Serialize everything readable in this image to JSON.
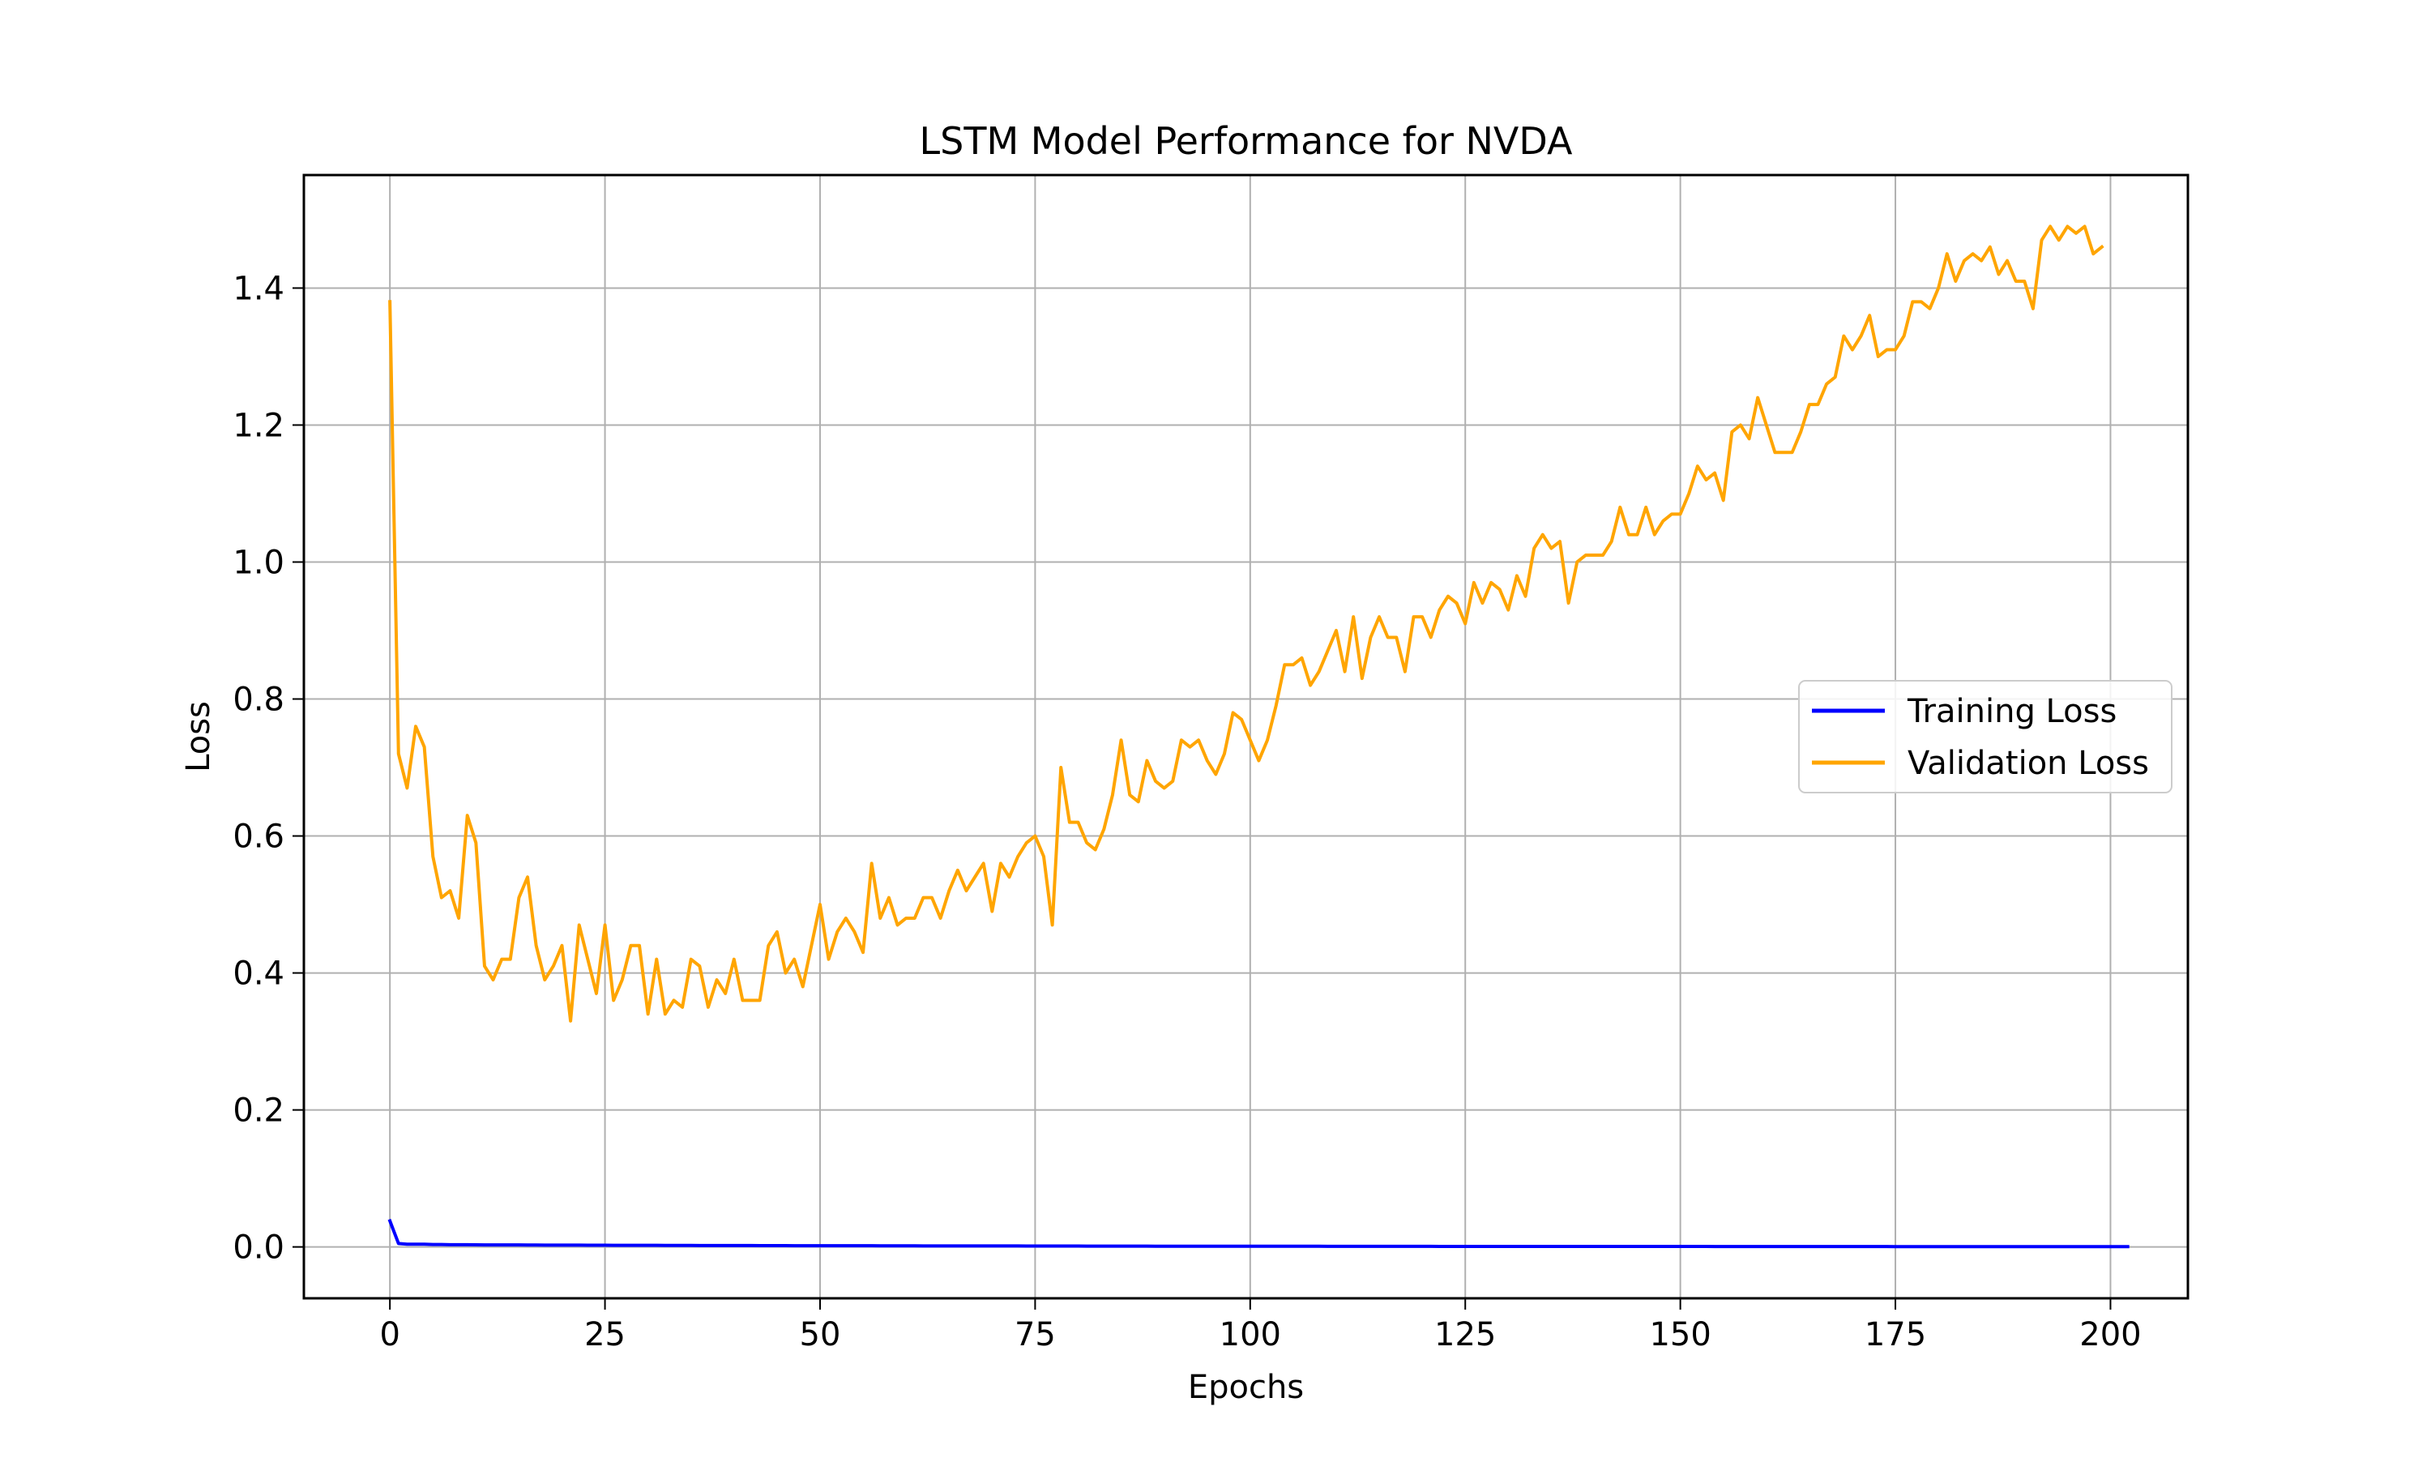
{
  "chart_data": {
    "type": "line",
    "title": "LSTM Model Performance for NVDA",
    "xlabel": "Epochs",
    "ylabel": "Loss",
    "xlim": [
      -10,
      209
    ],
    "ylim": [
      -0.075,
      1.565
    ],
    "xticks": [
      0,
      25,
      50,
      75,
      100,
      125,
      150,
      175,
      200
    ],
    "yticks": [
      0.0,
      0.2,
      0.4,
      0.6,
      0.8,
      1.0,
      1.2,
      1.4
    ],
    "xtick_labels": [
      "0",
      "25",
      "50",
      "75",
      "100",
      "125",
      "150",
      "175",
      "200"
    ],
    "ytick_labels": [
      "0.0",
      "0.2",
      "0.4",
      "0.6",
      "0.8",
      "1.0",
      "1.2",
      "1.4"
    ],
    "grid": true,
    "legend_position": "center-right",
    "series": [
      {
        "name": "Training Loss",
        "color": "#0000ff",
        "x_start": 0,
        "values": [
          0.038,
          0.005,
          0.004,
          0.004,
          0.004,
          0.0035,
          0.0035,
          0.0033,
          0.0032,
          0.0032,
          0.0031,
          0.003,
          0.003,
          0.003,
          0.0029,
          0.0029,
          0.0028,
          0.0028,
          0.0027,
          0.0027,
          0.0027,
          0.0026,
          0.0026,
          0.0025,
          0.0025,
          0.0025,
          0.0024,
          0.0024,
          0.0024,
          0.0023,
          0.0023,
          0.0023,
          0.0022,
          0.0022,
          0.0022,
          0.0022,
          0.0021,
          0.0021,
          0.0021,
          0.002,
          0.002,
          0.002,
          0.002,
          0.0019,
          0.0019,
          0.0019,
          0.0019,
          0.0018,
          0.0018,
          0.0018,
          0.0018,
          0.0018,
          0.0017,
          0.0017,
          0.0017,
          0.0017,
          0.0017,
          0.0016,
          0.0016,
          0.0016,
          0.0016,
          0.0016,
          0.0015,
          0.0015,
          0.0015,
          0.0015,
          0.0015,
          0.0015,
          0.0014,
          0.0014,
          0.0014,
          0.0014,
          0.0014,
          0.0014,
          0.0013,
          0.0013,
          0.0013,
          0.0013,
          0.0013,
          0.0013,
          0.0013,
          0.0012,
          0.0012,
          0.0012,
          0.0012,
          0.0012,
          0.0012,
          0.0012,
          0.0012,
          0.0011,
          0.0011,
          0.0011,
          0.0011,
          0.0011,
          0.0011,
          0.0011,
          0.0011,
          0.0011,
          0.001,
          0.001,
          0.001,
          0.001,
          0.001,
          0.001,
          0.001,
          0.001,
          0.001,
          0.001,
          0.001,
          0.0009,
          0.0009,
          0.0009,
          0.0009,
          0.0009,
          0.0009,
          0.0009,
          0.0009,
          0.0009,
          0.0009,
          0.0009,
          0.0009,
          0.0009,
          0.0008,
          0.0008,
          0.0008,
          0.0008,
          0.0008,
          0.0008,
          0.0008,
          0.0008,
          0.0008,
          0.0008,
          0.0008,
          0.0008,
          0.0008,
          0.0008,
          0.0008,
          0.0007,
          0.0007,
          0.0007,
          0.0007,
          0.0007,
          0.0007,
          0.0007,
          0.0007,
          0.0007,
          0.0007,
          0.0007,
          0.0007,
          0.0007,
          0.0007,
          0.0007,
          0.0007,
          0.0007,
          0.0006,
          0.0006,
          0.0006,
          0.0006,
          0.0006,
          0.0006,
          0.0006,
          0.0006,
          0.0006,
          0.0006,
          0.0006,
          0.0006,
          0.0006,
          0.0006,
          0.0006,
          0.0006,
          0.0006,
          0.0006,
          0.0006,
          0.0006,
          0.0006,
          0.0005,
          0.0005,
          0.0005,
          0.0005,
          0.0005,
          0.0005,
          0.0005,
          0.0005,
          0.0005,
          0.0005,
          0.0005,
          0.0005,
          0.0005,
          0.0005,
          0.0005,
          0.0005,
          0.0005,
          0.0005,
          0.0005,
          0.0005,
          0.0005,
          0.0005,
          0.0005,
          0.0005,
          0.0005,
          0.0005,
          0.0005,
          0.0005
        ]
      },
      {
        "name": "Validation Loss",
        "color": "#ffa500",
        "x_start": 0,
        "values": [
          1.38,
          0.72,
          0.67,
          0.76,
          0.73,
          0.57,
          0.51,
          0.52,
          0.48,
          0.63,
          0.59,
          0.41,
          0.39,
          0.42,
          0.42,
          0.51,
          0.54,
          0.44,
          0.39,
          0.41,
          0.44,
          0.33,
          0.47,
          0.42,
          0.37,
          0.47,
          0.36,
          0.39,
          0.44,
          0.44,
          0.34,
          0.42,
          0.34,
          0.36,
          0.35,
          0.42,
          0.41,
          0.35,
          0.39,
          0.37,
          0.42,
          0.36,
          0.36,
          0.36,
          0.44,
          0.46,
          0.4,
          0.42,
          0.38,
          0.44,
          0.5,
          0.42,
          0.46,
          0.48,
          0.46,
          0.43,
          0.56,
          0.48,
          0.51,
          0.47,
          0.48,
          0.48,
          0.51,
          0.51,
          0.48,
          0.52,
          0.55,
          0.52,
          0.54,
          0.56,
          0.49,
          0.56,
          0.54,
          0.57,
          0.59,
          0.6,
          0.57,
          0.47,
          0.7,
          0.62,
          0.62,
          0.59,
          0.58,
          0.61,
          0.66,
          0.74,
          0.66,
          0.65,
          0.71,
          0.68,
          0.67,
          0.68,
          0.74,
          0.73,
          0.74,
          0.71,
          0.69,
          0.72,
          0.78,
          0.77,
          0.74,
          0.71,
          0.74,
          0.79,
          0.85,
          0.85,
          0.86,
          0.82,
          0.84,
          0.87,
          0.9,
          0.84,
          0.92,
          0.83,
          0.89,
          0.92,
          0.89,
          0.89,
          0.84,
          0.92,
          0.92,
          0.89,
          0.93,
          0.95,
          0.94,
          0.91,
          0.97,
          0.94,
          0.97,
          0.96,
          0.93,
          0.98,
          0.95,
          1.02,
          1.04,
          1.02,
          1.03,
          0.94,
          1.0,
          1.01,
          1.01,
          1.01,
          1.03,
          1.08,
          1.04,
          1.04,
          1.08,
          1.04,
          1.06,
          1.07,
          1.07,
          1.1,
          1.14,
          1.12,
          1.13,
          1.09,
          1.19,
          1.2,
          1.18,
          1.24,
          1.2,
          1.16,
          1.16,
          1.16,
          1.19,
          1.23,
          1.23,
          1.26,
          1.27,
          1.33,
          1.31,
          1.33,
          1.36,
          1.3,
          1.31,
          1.31,
          1.33,
          1.38,
          1.38,
          1.37,
          1.4,
          1.45,
          1.41,
          1.44,
          1.45,
          1.44,
          1.46,
          1.42,
          1.44,
          1.41,
          1.41,
          1.37,
          1.47,
          1.49,
          1.47,
          1.49,
          1.48,
          1.49,
          1.45,
          1.46
        ]
      }
    ]
  }
}
